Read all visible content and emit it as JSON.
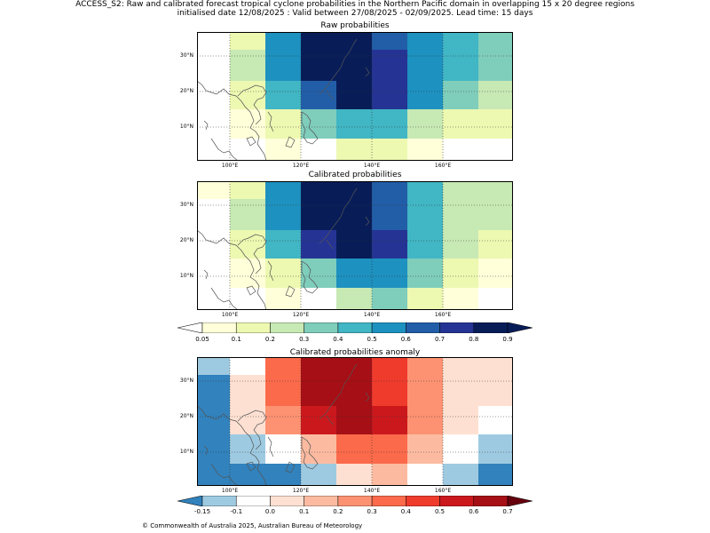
{
  "title_line1": "ACCESS_S2: Raw and calibrated forecast tropical cyclone probabilities in the Northern Pacific domain in overlapping 15 x 20 degree regions",
  "title_line2": "initialised date 12/08/2025 :  Valid between 27/08/2025 - 02/09/2025. Lead time: 15 days",
  "panels": [
    {
      "title": "Raw probabilities"
    },
    {
      "title": "Calibrated probabilities"
    },
    {
      "title": "Calibrated probabilities anomaly"
    }
  ],
  "lat_labels": [
    "30°N",
    "20°N",
    "10°N"
  ],
  "lon_labels": [
    "100°E",
    "120°E",
    "140°E",
    "160°E"
  ],
  "colorbar_prob": {
    "labels": [
      "0.05",
      "0.1",
      "0.2",
      "0.3",
      "0.4",
      "0.5",
      "0.6",
      "0.7",
      "0.8",
      "0.9"
    ],
    "colors": [
      "#ffffd9",
      "#edf8b1",
      "#c7e9b4",
      "#7fcdbb",
      "#41b6c4",
      "#1d91c0",
      "#225ea8",
      "#253494",
      "#081d58"
    ]
  },
  "colorbar_anom": {
    "labels": [
      "-0.15",
      "-0.1",
      "0.0",
      "0.1",
      "0.2",
      "0.3",
      "0.4",
      "0.5",
      "0.6",
      "0.7"
    ],
    "colors": [
      "#9ecae1",
      "#ffffff",
      "#fee0d2",
      "#fcbba1",
      "#fc9272",
      "#fb6a4a",
      "#ef3b2c",
      "#cb181d",
      "#a50f15"
    ]
  },
  "grid_bins": {
    "raw": [
      [
        -1,
        1,
        5,
        8,
        8,
        6,
        5,
        4,
        3
      ],
      [
        -1,
        2,
        5,
        8,
        8,
        7,
        5,
        4,
        3
      ],
      [
        -1,
        1,
        4,
        6,
        8,
        7,
        5,
        3,
        2
      ],
      [
        -1,
        0,
        1,
        3,
        4,
        4,
        2,
        1,
        1
      ],
      [
        -1,
        -1,
        0,
        -1,
        1,
        1,
        0,
        -1,
        -1
      ]
    ],
    "calibrated": [
      [
        0,
        1,
        5,
        8,
        8,
        6,
        4,
        2,
        2
      ],
      [
        -1,
        2,
        5,
        8,
        8,
        6,
        4,
        2,
        2
      ],
      [
        -1,
        1,
        4,
        7,
        8,
        7,
        4,
        2,
        1
      ],
      [
        -1,
        0,
        1,
        3,
        5,
        5,
        3,
        1,
        0
      ],
      [
        -1,
        -1,
        0,
        -1,
        2,
        3,
        1,
        0,
        -1
      ]
    ],
    "anomaly": [
      [
        0,
        1,
        5,
        8,
        8,
        6,
        4,
        2,
        2
      ],
      [
        -1,
        2,
        5,
        8,
        8,
        6,
        4,
        2,
        2
      ],
      [
        -1,
        1,
        4,
        7,
        8,
        7,
        4,
        2,
        1
      ],
      [
        -1,
        0,
        1,
        3,
        5,
        5,
        3,
        1,
        0
      ],
      [
        -1,
        -1,
        0,
        -1,
        2,
        3,
        1,
        0,
        -1
      ]
    ],
    "anomaly_values": [
      [
        0,
        1,
        5,
        8,
        8,
        6,
        4,
        2,
        2
      ],
      [
        -1,
        2,
        5,
        8,
        8,
        6,
        4,
        2,
        2
      ],
      [
        -1,
        1,
        4,
        7,
        8,
        7,
        4,
        2,
        1
      ],
      [
        -1,
        0,
        1,
        3,
        5,
        5,
        3,
        1,
        0
      ],
      [
        -1,
        -1,
        0,
        -1,
        2,
        3,
        1,
        0,
        -1
      ]
    ]
  },
  "footer": "© Commonwealth of Australia 2025, Australian Bureau of Meteorology"
}
